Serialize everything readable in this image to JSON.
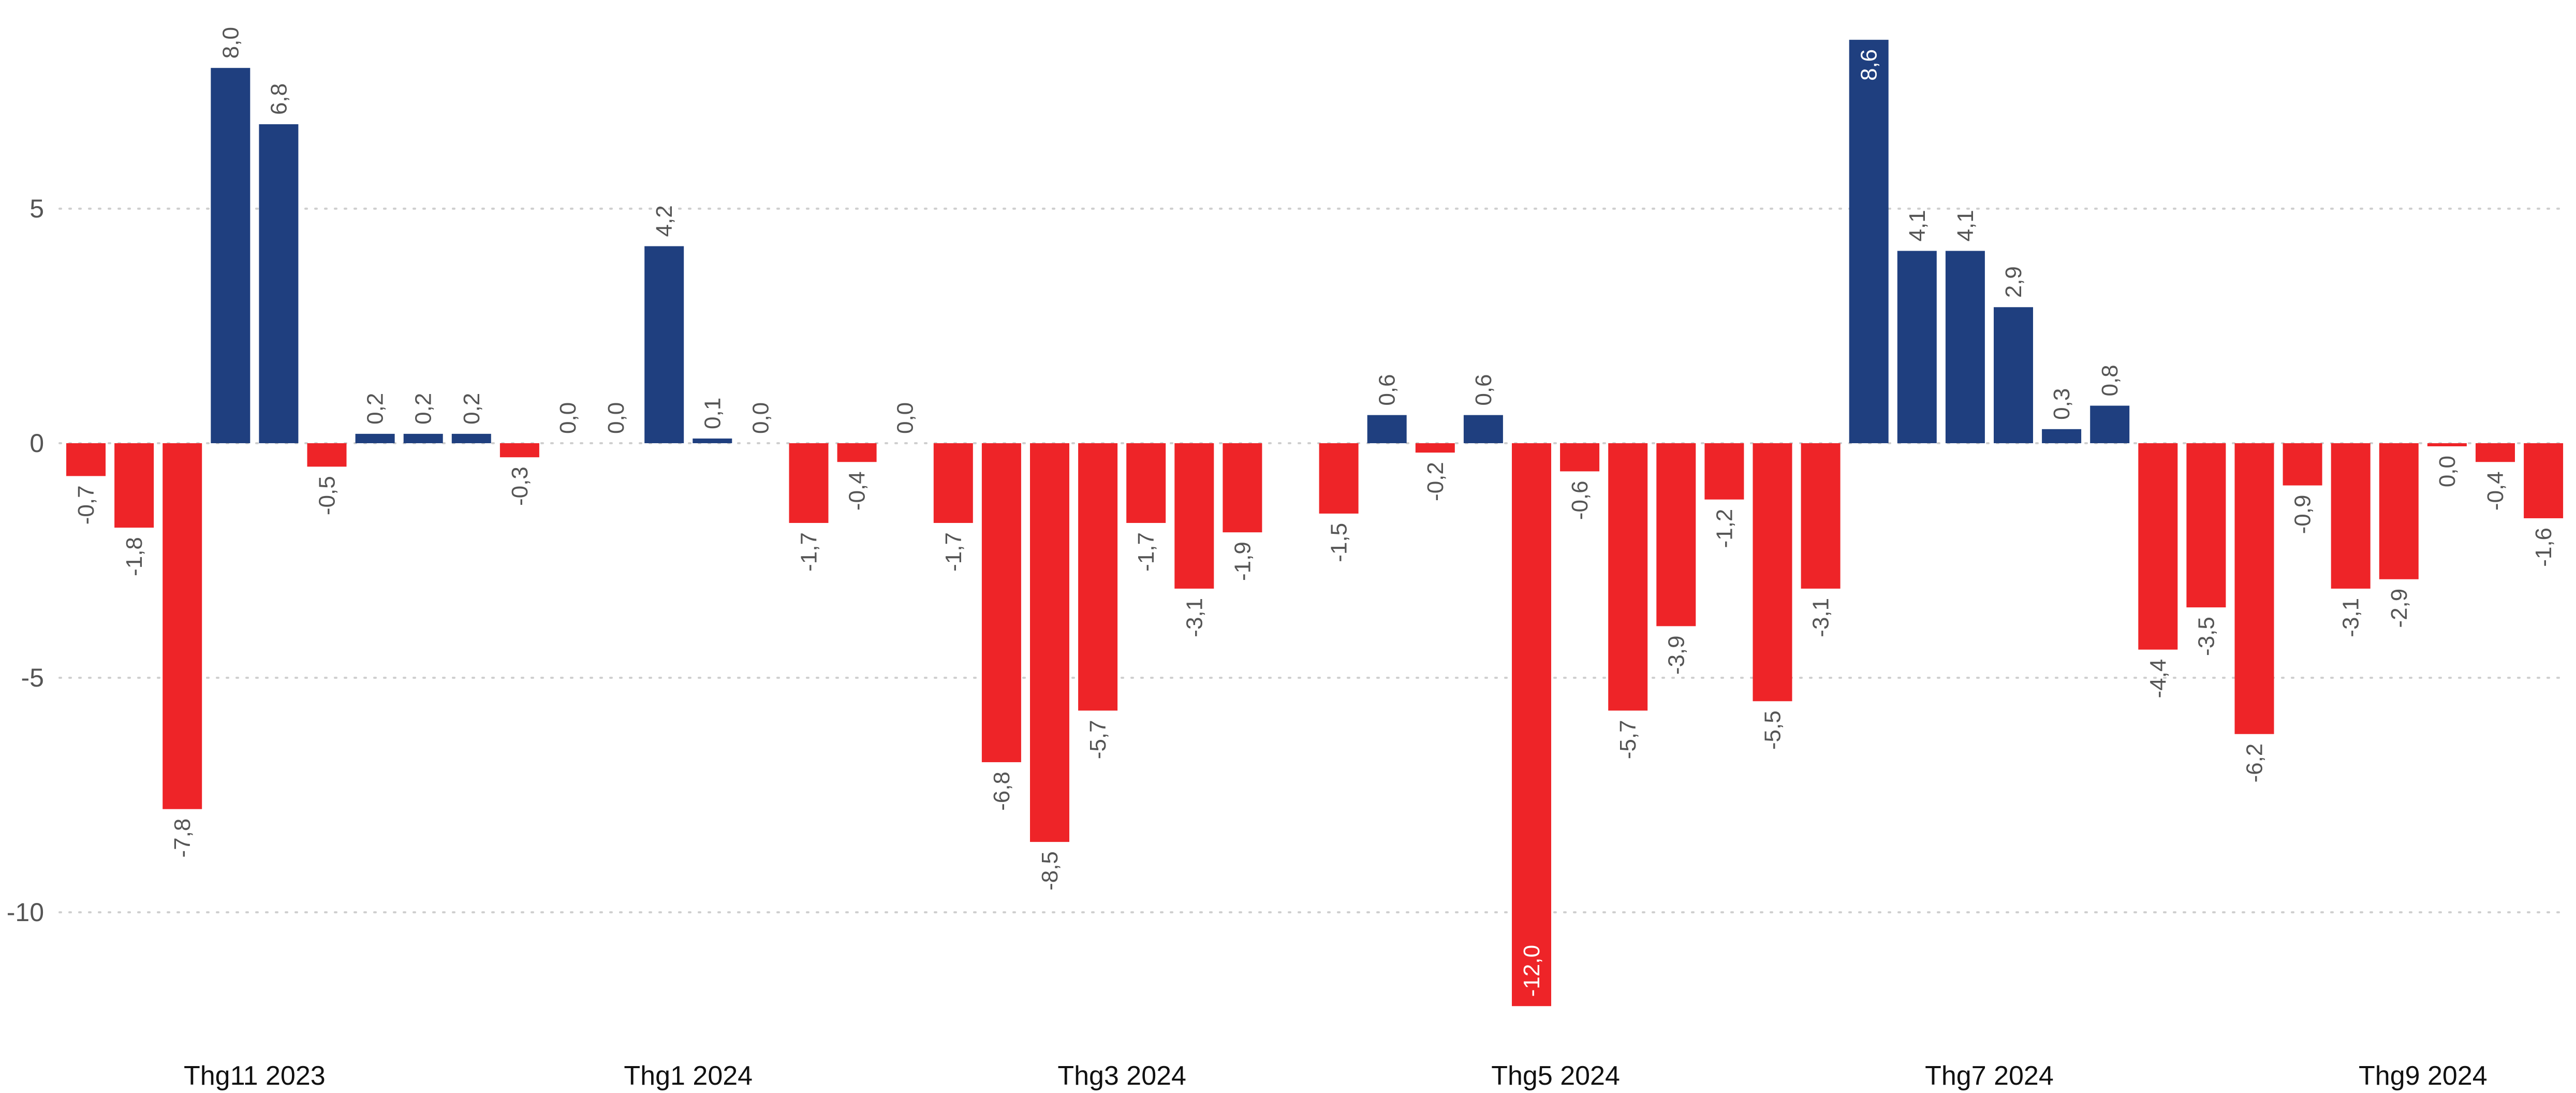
{
  "chart_data": {
    "type": "bar",
    "ylim": [
      -12.6,
      8.9
    ],
    "yticks": [
      5,
      0,
      -5,
      -10
    ],
    "ytick_labels": [
      "5",
      "0",
      "-5",
      "-10"
    ],
    "grid": true,
    "colors": {
      "positive": "#1f3f7f",
      "negative": "#ee2428"
    },
    "xtick_labels": [
      {
        "label": "Thg11 2023",
        "after_bar_index": 3
      },
      {
        "label": "Thg1 2024",
        "after_bar_index": 12
      },
      {
        "label": "Thg3 2024",
        "after_bar_index": 21
      },
      {
        "label": "Thg5 2024",
        "after_bar_index": 30
      },
      {
        "label": "Thg7 2024",
        "after_bar_index": 39
      },
      {
        "label": "Thg9 2024",
        "after_bar_index": 48
      }
    ],
    "values": [
      -0.7,
      -1.8,
      -7.8,
      8.0,
      6.8,
      -0.5,
      0.2,
      0.2,
      0.2,
      -0.3,
      0.0,
      0.0,
      4.2,
      0.1,
      0.0,
      -1.7,
      -0.4,
      0.0,
      -1.7,
      -6.8,
      -8.5,
      -5.7,
      -1.7,
      -3.1,
      -1.9,
      null,
      -1.5,
      0.6,
      -0.2,
      0.6,
      -12.0,
      -0.6,
      -5.7,
      -3.9,
      -1.2,
      -5.5,
      -3.1,
      8.6,
      4.1,
      4.1,
      2.9,
      0.3,
      0.8,
      -4.4,
      -3.5,
      -6.2,
      -0.9,
      -3.1,
      -2.9,
      0.0,
      -0.4,
      -1.6
    ],
    "labels": [
      "-0,7",
      "-1,8",
      "-7,8",
      "8,0",
      "6,8",
      "-0,5",
      "0,2",
      "0,2",
      "0,2",
      "-0,3",
      "0,0",
      "0,0",
      "4,2",
      "0,1",
      "0,0",
      "-1,7",
      "-0,4",
      "0,0",
      "-1,7",
      "-6,8",
      "-8,5",
      "-5,7",
      "-1,7",
      "-3,1",
      "-1,9",
      "",
      "-1,5",
      "0,6",
      "-0,2",
      "0,6",
      "-12,0",
      "-0,6",
      "-5,7",
      "-3,9",
      "-1,2",
      "-5,5",
      "-3,1",
      "8,6",
      "4,1",
      "4,1",
      "2,9",
      "0,3",
      "0,8",
      "-4,4",
      "-3,5",
      "-6,2",
      "-0,9",
      "-3,1",
      "-2,9",
      "0,0",
      "-0,4",
      "-1,6"
    ],
    "label_inside": [
      30,
      37
    ],
    "zero_negative": [
      49
    ],
    "title": "",
    "xlabel": "",
    "ylabel": ""
  }
}
